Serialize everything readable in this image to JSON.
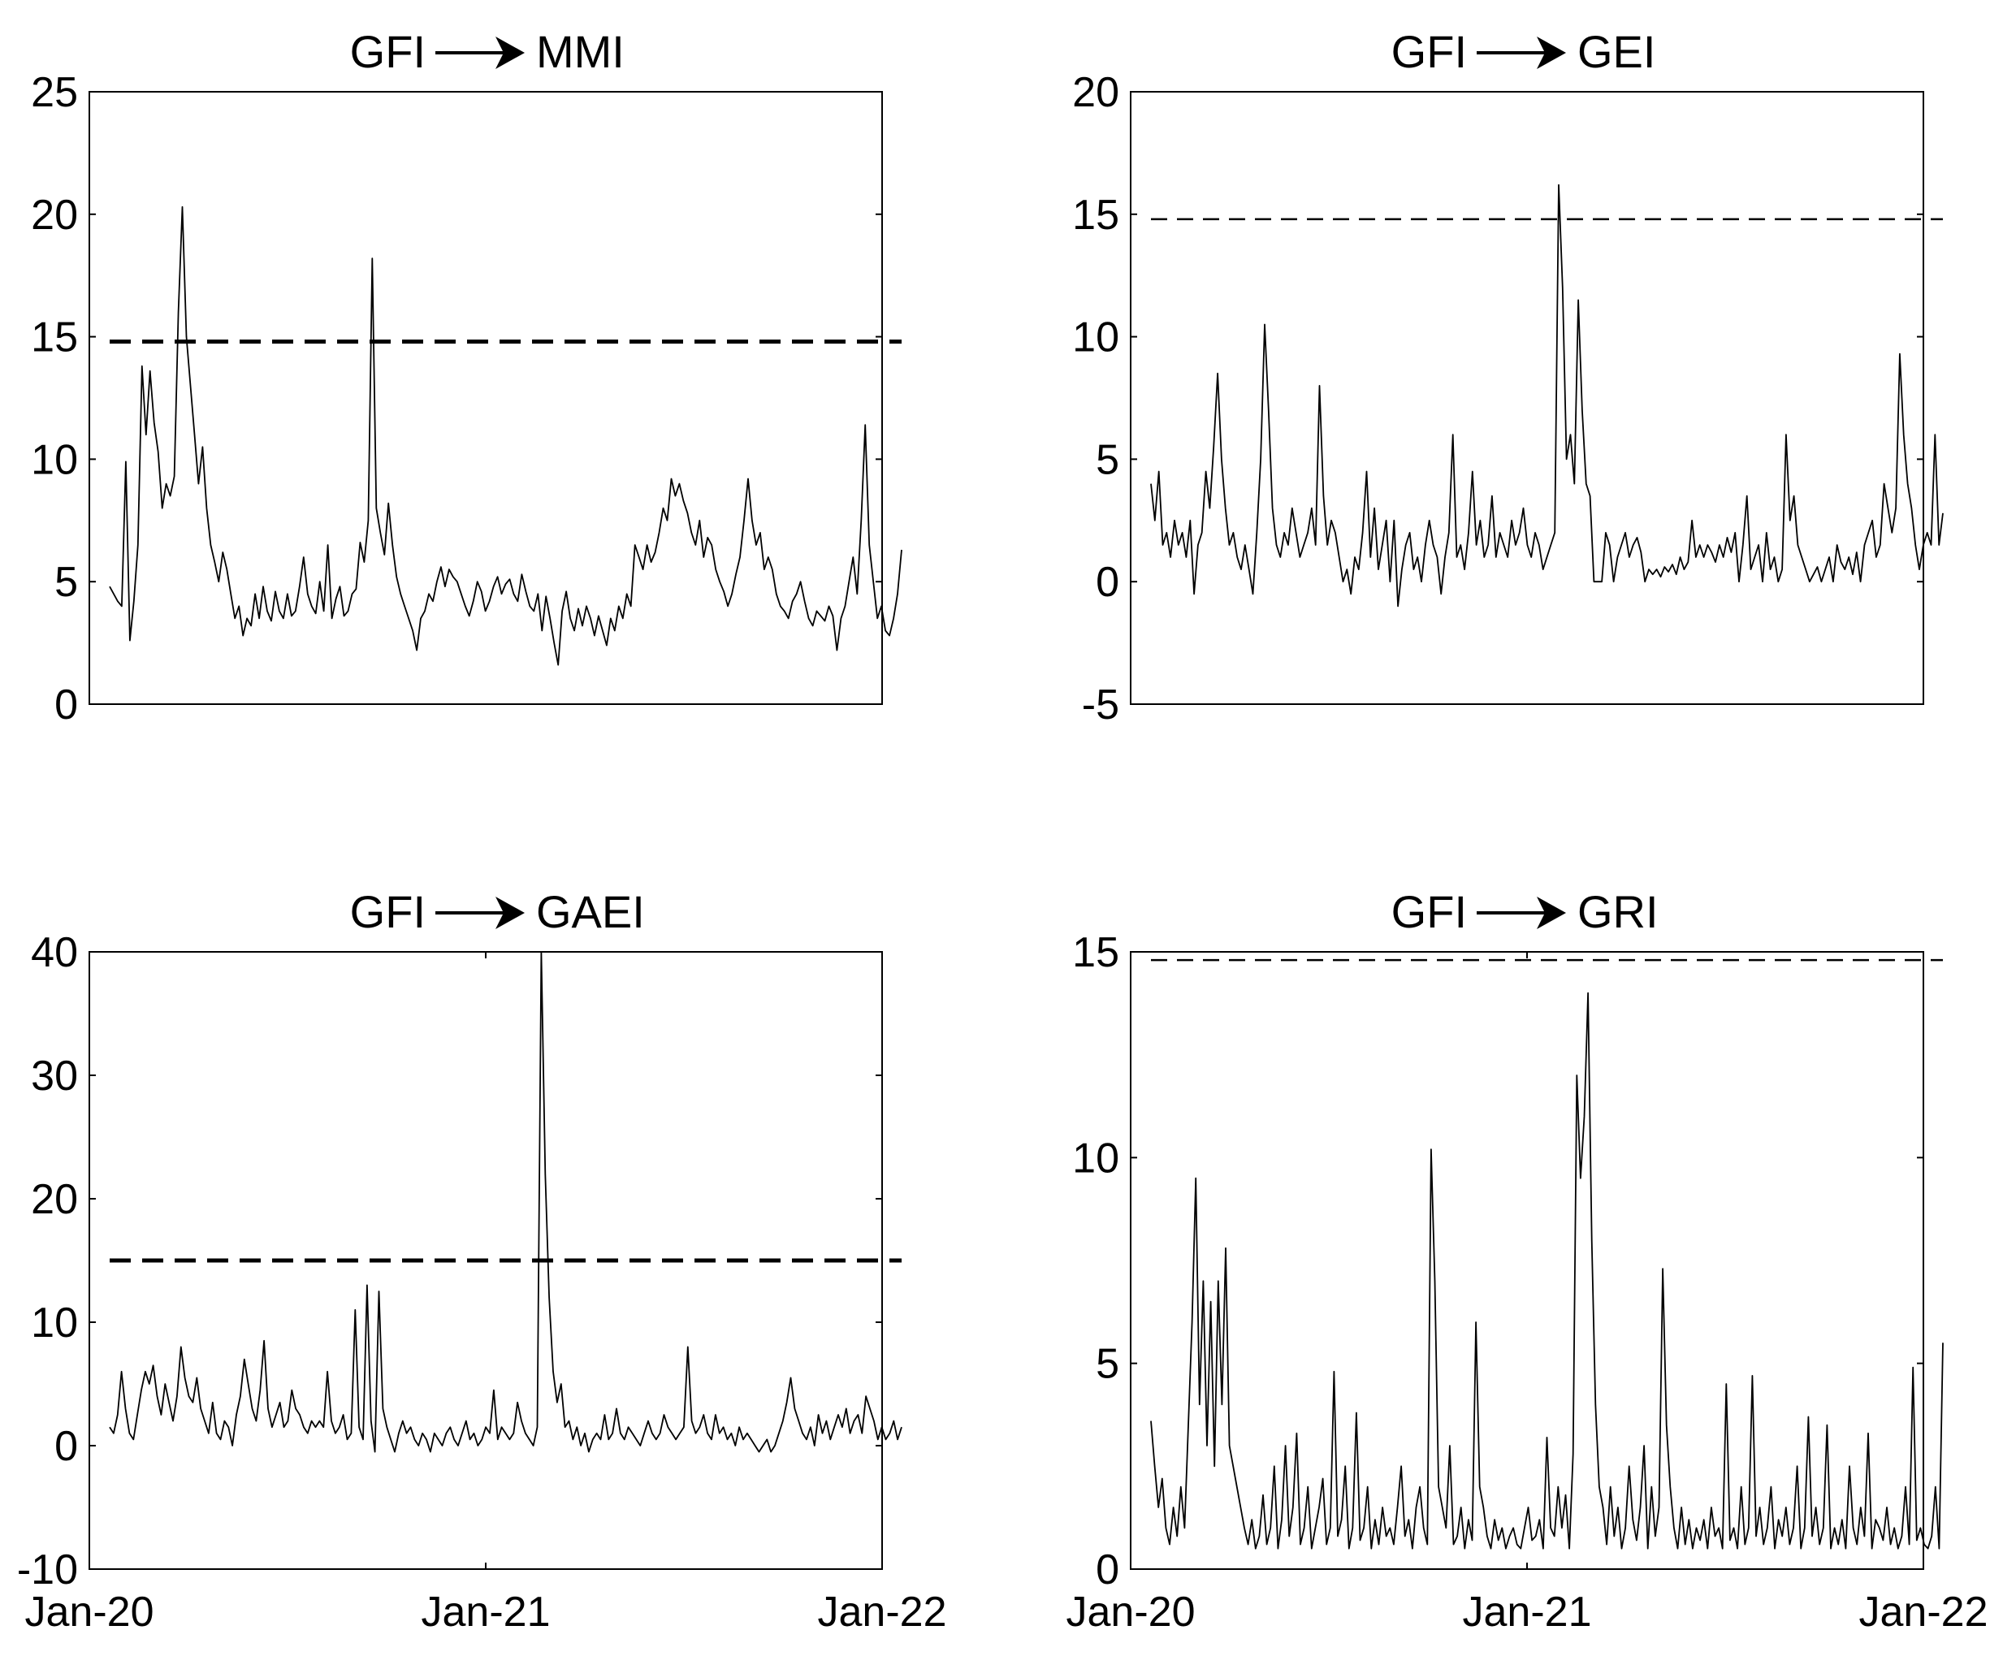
{
  "chart_data": [
    {
      "type": "line",
      "title": "GFI → MMI",
      "title_parts": {
        "from": "GFI",
        "arrow": "arrow-right-icon",
        "to": "MMI"
      },
      "ylim": [
        0,
        25
      ],
      "yticks": [
        "0",
        "5",
        "10",
        "15",
        "20",
        "25"
      ],
      "xticks": [],
      "grid": false,
      "threshold": {
        "value": 14.8,
        "style": "dashed",
        "weight": "bold"
      },
      "series": [
        {
          "values": [
            4.8,
            4.5,
            4.2,
            4.0,
            9.9,
            2.6,
            4.2,
            6.5,
            13.8,
            11.0,
            13.6,
            11.5,
            10.3,
            8.0,
            9.0,
            8.5,
            9.3,
            16.0,
            20.3,
            15.0,
            13.0,
            11.0,
            9.0,
            10.5,
            8.0,
            6.5,
            5.8,
            5.0,
            6.2,
            5.5,
            4.5,
            3.5,
            4.0,
            2.8,
            3.5,
            3.2,
            4.5,
            3.5,
            4.8,
            3.8,
            3.4,
            4.6,
            3.8,
            3.5,
            4.5,
            3.6,
            3.8,
            4.8,
            6.0,
            4.5,
            4.0,
            3.7,
            5.0,
            3.8,
            6.5,
            3.5,
            4.3,
            4.8,
            3.6,
            3.8,
            4.5,
            4.7,
            6.6,
            5.8,
            7.5,
            18.2,
            8.0,
            7.0,
            6.1,
            8.2,
            6.5,
            5.2,
            4.5,
            4.0,
            3.5,
            3.0,
            2.2,
            3.5,
            3.8,
            4.5,
            4.2,
            5.0,
            5.6,
            4.8,
            5.5,
            5.2,
            5.0,
            4.5,
            4.0,
            3.6,
            4.2,
            5.0,
            4.6,
            3.8,
            4.2,
            4.8,
            5.2,
            4.5,
            4.9,
            5.1,
            4.5,
            4.2,
            5.3,
            4.6,
            4.0,
            3.8,
            4.5,
            3.0,
            4.4,
            3.5,
            2.5,
            1.6,
            3.8,
            4.6,
            3.5,
            3.0,
            3.9,
            3.2,
            4.0,
            3.5,
            2.8,
            3.6,
            3.0,
            2.4,
            3.5,
            3.0,
            4.0,
            3.5,
            4.5,
            4.0,
            6.5,
            6.0,
            5.5,
            6.5,
            5.8,
            6.2,
            7.0,
            8.0,
            7.5,
            9.2,
            8.5,
            9.0,
            8.3,
            7.8,
            7.0,
            6.5,
            7.5,
            6.0,
            6.8,
            6.5,
            5.5,
            5.0,
            4.6,
            4.0,
            4.5,
            5.3,
            6.0,
            7.5,
            9.2,
            7.5,
            6.5,
            7.0,
            5.5,
            6.0,
            5.5,
            4.5,
            4.0,
            3.8,
            3.5,
            4.2,
            4.5,
            5.0,
            4.2,
            3.5,
            3.2,
            3.8,
            3.6,
            3.4,
            4.0,
            3.6,
            2.2,
            3.5,
            4.0,
            5.0,
            6.0,
            4.5,
            7.5,
            11.4,
            6.5,
            5.0,
            3.5,
            4.0,
            3.0,
            2.8,
            3.5,
            4.5,
            6.3
          ]
        }
      ]
    },
    {
      "type": "line",
      "title": "GFI → GEI",
      "title_parts": {
        "from": "GFI",
        "arrow": "arrow-right-icon",
        "to": "GEI"
      },
      "ylim": [
        -5,
        20
      ],
      "yticks": [
        "-5",
        "0",
        "5",
        "10",
        "15",
        "20"
      ],
      "xticks": [],
      "grid": false,
      "threshold": {
        "value": 14.8,
        "style": "dashed",
        "weight": "thin"
      },
      "series": [
        {
          "values": [
            4.0,
            2.5,
            4.5,
            1.5,
            2.0,
            1.0,
            2.5,
            1.5,
            2.0,
            1.0,
            2.5,
            -0.5,
            1.5,
            2.0,
            4.5,
            3.0,
            5.5,
            8.5,
            5.0,
            3.0,
            1.5,
            2.0,
            1.0,
            0.5,
            1.5,
            0.5,
            -0.5,
            2.0,
            5.0,
            10.5,
            7.0,
            3.0,
            1.5,
            1.0,
            2.0,
            1.5,
            3.0,
            2.0,
            1.0,
            1.5,
            2.0,
            3.0,
            1.5,
            8.0,
            3.5,
            1.5,
            2.5,
            2.0,
            1.0,
            0.0,
            0.5,
            -0.5,
            1.0,
            0.5,
            2.0,
            4.5,
            1.0,
            3.0,
            0.5,
            1.5,
            2.5,
            0.0,
            2.5,
            -1.0,
            0.5,
            1.5,
            2.0,
            0.5,
            1.0,
            0.0,
            1.5,
            2.5,
            1.5,
            1.0,
            -0.5,
            1.0,
            2.0,
            6.0,
            1.0,
            1.5,
            0.5,
            2.0,
            4.5,
            1.5,
            2.5,
            1.0,
            1.5,
            3.5,
            1.0,
            2.0,
            1.5,
            1.0,
            2.5,
            1.5,
            2.0,
            3.0,
            1.5,
            1.0,
            2.0,
            1.5,
            0.5,
            1.0,
            1.5,
            2.0,
            16.2,
            12.0,
            5.0,
            6.0,
            4.0,
            11.5,
            7.0,
            4.0,
            3.5,
            0.0,
            0.0,
            0.0,
            2.0,
            1.5,
            0.0,
            1.0,
            1.5,
            2.0,
            1.0,
            1.5,
            1.8,
            1.2,
            0.0,
            0.5,
            0.3,
            0.5,
            0.2,
            0.6,
            0.4,
            0.7,
            0.3,
            1.0,
            0.5,
            0.8,
            2.5,
            1.0,
            1.5,
            1.0,
            1.5,
            1.2,
            0.8,
            1.5,
            1.0,
            1.8,
            1.2,
            2.0,
            0.0,
            1.5,
            3.5,
            0.5,
            1.0,
            1.5,
            0.0,
            2.0,
            0.5,
            1.0,
            0.0,
            0.5,
            6.0,
            2.5,
            3.5,
            1.5,
            1.0,
            0.5,
            0.0,
            0.3,
            0.6,
            0.0,
            0.5,
            1.0,
            0.0,
            1.5,
            0.8,
            0.5,
            1.0,
            0.3,
            1.2,
            0.0,
            1.5,
            2.0,
            2.5,
            1.0,
            1.5,
            4.0,
            3.0,
            2.0,
            3.0,
            9.3,
            6.0,
            4.0,
            3.0,
            1.5,
            0.5,
            1.5,
            2.0,
            1.5,
            6.0,
            1.5,
            2.8
          ]
        }
      ]
    },
    {
      "type": "line",
      "title": "GFI → GAEI",
      "title_parts": {
        "from": "GFI",
        "arrow": "arrow-right-icon",
        "to": "GAEI"
      },
      "ylim": [
        -10,
        40
      ],
      "yticks": [
        "-10",
        "0",
        "10",
        "20",
        "30",
        "40"
      ],
      "xticks": [
        "Jan-20",
        "Jan-21",
        "Jan-22"
      ],
      "grid": false,
      "threshold": {
        "value": 15,
        "style": "dashed",
        "weight": "bold"
      },
      "series": [
        {
          "values": [
            1.5,
            1.0,
            2.5,
            6.0,
            3.0,
            1.0,
            0.5,
            2.5,
            4.5,
            6.0,
            5.0,
            6.5,
            4.0,
            2.5,
            5.0,
            3.5,
            2.0,
            4.0,
            8.0,
            5.5,
            4.0,
            3.5,
            5.5,
            3.0,
            2.0,
            1.0,
            3.5,
            1.0,
            0.5,
            2.0,
            1.5,
            0.0,
            2.5,
            4.0,
            7.0,
            5.0,
            3.0,
            2.0,
            4.5,
            8.5,
            3.0,
            1.5,
            2.5,
            3.5,
            1.5,
            2.0,
            4.5,
            3.0,
            2.5,
            1.5,
            1.0,
            2.0,
            1.5,
            2.0,
            1.5,
            6.0,
            2.0,
            1.0,
            1.5,
            2.5,
            0.5,
            1.0,
            11.0,
            1.5,
            0.5,
            13.0,
            2.0,
            -0.5,
            12.5,
            3.0,
            1.5,
            0.5,
            -0.5,
            1.0,
            2.0,
            1.0,
            1.5,
            0.5,
            0.0,
            1.0,
            0.5,
            -0.5,
            1.0,
            0.5,
            0.0,
            1.0,
            1.5,
            0.5,
            0.0,
            1.0,
            2.0,
            0.5,
            1.0,
            0.0,
            0.5,
            1.5,
            1.0,
            4.5,
            0.5,
            1.5,
            1.0,
            0.5,
            1.0,
            3.5,
            2.0,
            1.0,
            0.5,
            0.0,
            1.5,
            40.0,
            22.0,
            12.0,
            6.0,
            3.5,
            5.0,
            1.5,
            2.0,
            0.5,
            1.5,
            0.0,
            1.0,
            -0.5,
            0.5,
            1.0,
            0.5,
            2.5,
            0.5,
            1.0,
            3.0,
            1.0,
            0.5,
            1.5,
            1.0,
            0.5,
            0.0,
            1.0,
            2.0,
            1.0,
            0.5,
            1.0,
            2.5,
            1.5,
            1.0,
            0.5,
            1.0,
            1.5,
            8.0,
            2.0,
            1.0,
            1.5,
            2.5,
            1.0,
            0.5,
            2.5,
            1.0,
            1.5,
            0.5,
            1.0,
            0.0,
            1.5,
            0.5,
            1.0,
            0.5,
            0.0,
            -0.5,
            0.0,
            0.5,
            -0.5,
            0.0,
            1.0,
            2.0,
            3.5,
            5.5,
            3.0,
            2.0,
            1.0,
            0.5,
            1.5,
            0.0,
            2.5,
            1.0,
            2.0,
            0.5,
            1.5,
            2.5,
            1.5,
            3.0,
            1.0,
            2.0,
            2.5,
            1.0,
            4.0,
            3.0,
            2.0,
            0.5,
            1.5,
            0.5,
            1.0,
            2.0,
            0.5,
            1.5
          ]
        }
      ]
    },
    {
      "type": "line",
      "title": "GFI → GRI",
      "title_parts": {
        "from": "GFI",
        "arrow": "arrow-right-icon",
        "to": "GRI"
      },
      "ylim": [
        0,
        15
      ],
      "yticks": [
        "0",
        "5",
        "10",
        "15"
      ],
      "xticks": [
        "Jan-20",
        "Jan-21",
        "Jan-22"
      ],
      "grid": false,
      "threshold": {
        "value": 14.8,
        "style": "dashed",
        "weight": "thin"
      },
      "series": [
        {
          "values": [
            3.6,
            2.5,
            1.5,
            2.2,
            1.0,
            0.6,
            1.5,
            0.8,
            2.0,
            1.0,
            3.5,
            6.0,
            9.5,
            4.0,
            7.0,
            3.0,
            6.5,
            2.5,
            7.0,
            4.0,
            7.8,
            3.0,
            2.5,
            2.0,
            1.5,
            1.0,
            0.6,
            1.2,
            0.5,
            0.8,
            1.8,
            0.6,
            1.0,
            2.5,
            0.5,
            1.2,
            3.0,
            0.8,
            1.5,
            3.3,
            0.6,
            1.0,
            2.0,
            0.5,
            1.0,
            1.5,
            2.2,
            0.6,
            1.0,
            4.8,
            0.8,
            1.2,
            2.5,
            0.5,
            1.0,
            3.8,
            0.7,
            1.0,
            2.0,
            0.5,
            1.2,
            0.6,
            1.5,
            0.8,
            1.0,
            0.6,
            1.5,
            2.5,
            0.8,
            1.2,
            0.5,
            1.5,
            2.0,
            1.0,
            0.6,
            10.2,
            7.0,
            2.0,
            1.5,
            1.0,
            3.0,
            0.6,
            0.8,
            1.5,
            0.5,
            1.2,
            0.7,
            6.0,
            2.0,
            1.5,
            0.8,
            0.5,
            1.2,
            0.7,
            1.0,
            0.5,
            0.8,
            1.0,
            0.6,
            0.5,
            1.0,
            1.5,
            0.7,
            0.8,
            1.2,
            0.5,
            3.2,
            1.0,
            0.8,
            2.0,
            1.0,
            1.8,
            0.5,
            2.8,
            12.0,
            9.5,
            11.0,
            14.0,
            8.0,
            4.0,
            2.0,
            1.5,
            0.6,
            2.0,
            0.8,
            1.5,
            0.5,
            1.0,
            2.5,
            1.2,
            0.7,
            1.5,
            3.0,
            0.5,
            2.0,
            0.8,
            1.5,
            7.3,
            3.5,
            2.0,
            1.0,
            0.5,
            1.5,
            0.6,
            1.2,
            0.5,
            1.0,
            0.7,
            1.2,
            0.5,
            1.5,
            0.8,
            1.0,
            0.5,
            4.5,
            0.7,
            1.0,
            0.5,
            2.0,
            0.6,
            1.0,
            4.7,
            0.8,
            1.5,
            0.6,
            1.0,
            2.0,
            0.5,
            1.2,
            0.8,
            1.5,
            0.6,
            1.0,
            2.5,
            0.5,
            1.0,
            3.7,
            0.8,
            1.5,
            0.6,
            1.0,
            3.5,
            0.5,
            1.0,
            0.6,
            1.2,
            0.5,
            2.5,
            1.0,
            0.6,
            1.5,
            0.8,
            3.3,
            0.5,
            1.2,
            1.0,
            0.7,
            1.5,
            0.6,
            1.0,
            0.5,
            0.8,
            2.0,
            0.6,
            4.9,
            0.7,
            1.0,
            0.6,
            0.5,
            0.8,
            2.0,
            0.5,
            5.5
          ]
        }
      ]
    }
  ]
}
